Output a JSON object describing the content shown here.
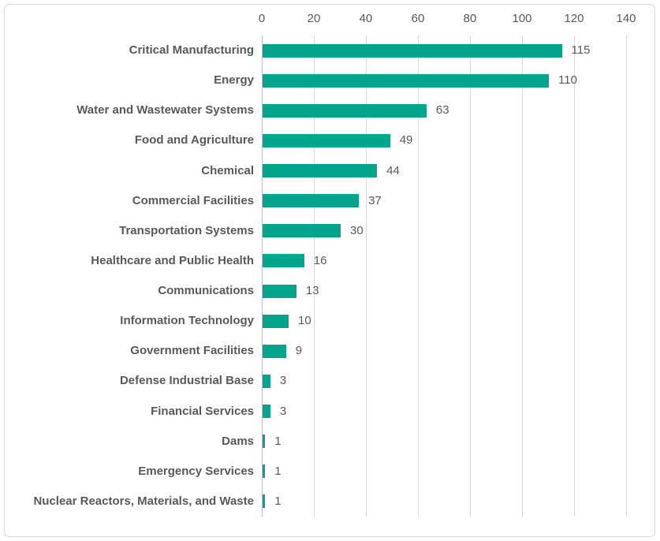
{
  "chart_data": {
    "type": "bar",
    "orientation": "horizontal",
    "title": "",
    "categories": [
      "Critical Manufacturing",
      "Energy",
      "Water and Wastewater Systems",
      "Food and Agriculture",
      "Chemical",
      "Commercial Facilities",
      "Transportation Systems",
      "Healthcare and Public Health",
      "Communications",
      "Information Technology",
      "Government Facilities",
      "Defense Industrial Base",
      "Financial Services",
      "Dams",
      "Emergency Services",
      "Nuclear Reactors, Materials, and Waste"
    ],
    "values": [
      115,
      110,
      63,
      49,
      44,
      37,
      30,
      16,
      13,
      10,
      9,
      3,
      3,
      1,
      1,
      1
    ],
    "value_labels_shown": true,
    "xlabel": "",
    "ylabel": "",
    "xlim": [
      0,
      140
    ],
    "xticks": [
      0,
      20,
      40,
      60,
      80,
      100,
      120,
      140
    ],
    "tick_position": "top",
    "grid": true,
    "legend": "none",
    "colors": {
      "bar": "#00a58c",
      "text": "#595959",
      "gridline": "#d9d9d9",
      "axis_line": "#c0c0c0",
      "frame_border": "#d9d9d9",
      "background": "#ffffff"
    }
  }
}
